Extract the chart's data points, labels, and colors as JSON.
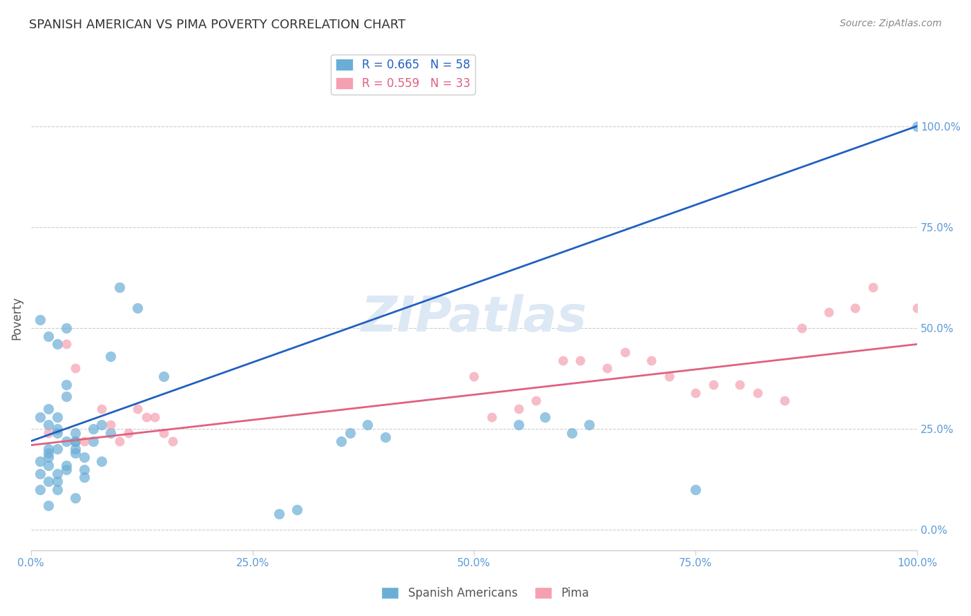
{
  "title": "SPANISH AMERICAN VS PIMA POVERTY CORRELATION CHART",
  "source": "Source: ZipAtlas.com",
  "ylabel": "Poverty",
  "xlabel": "",
  "blue_R": 0.665,
  "blue_N": 58,
  "pink_R": 0.559,
  "pink_N": 33,
  "blue_color": "#6aaed6",
  "pink_color": "#f4a0b0",
  "blue_line_color": "#2060c0",
  "pink_line_color": "#e06080",
  "background_color": "#ffffff",
  "grid_color": "#cccccc",
  "title_color": "#333333",
  "axis_label_color": "#5b9bd5",
  "watermark_color": "#dde8f5",
  "xlim": [
    0,
    1
  ],
  "ylim": [
    -0.05,
    1.1
  ],
  "blue_scatter_x": [
    0.02,
    0.04,
    0.01,
    0.03,
    0.05,
    0.02,
    0.06,
    0.03,
    0.01,
    0.02,
    0.04,
    0.03,
    0.07,
    0.05,
    0.02,
    0.01,
    0.03,
    0.06,
    0.08,
    0.05,
    0.04,
    0.1,
    0.12,
    0.09,
    0.15,
    0.02,
    0.03,
    0.04,
    0.02,
    0.01,
    0.03,
    0.05,
    0.02,
    0.04,
    0.06,
    0.07,
    0.09,
    0.03,
    0.02,
    0.04,
    0.01,
    0.02,
    0.05,
    0.03,
    0.05,
    0.08,
    0.35,
    0.36,
    0.38,
    0.4,
    0.55,
    0.58,
    0.61,
    0.63,
    0.3,
    0.28,
    0.75,
    1.0
  ],
  "blue_scatter_y": [
    0.48,
    0.5,
    0.52,
    0.46,
    0.22,
    0.2,
    0.18,
    0.25,
    0.28,
    0.3,
    0.33,
    0.24,
    0.22,
    0.2,
    0.16,
    0.14,
    0.12,
    0.15,
    0.17,
    0.19,
    0.36,
    0.6,
    0.55,
    0.43,
    0.38,
    0.26,
    0.28,
    0.22,
    0.19,
    0.17,
    0.1,
    0.08,
    0.06,
    0.15,
    0.13,
    0.25,
    0.24,
    0.2,
    0.18,
    0.16,
    0.1,
    0.12,
    0.22,
    0.14,
    0.24,
    0.26,
    0.22,
    0.24,
    0.26,
    0.23,
    0.26,
    0.28,
    0.24,
    0.26,
    0.05,
    0.04,
    0.1,
    1.0
  ],
  "pink_scatter_x": [
    0.02,
    0.04,
    0.05,
    0.08,
    0.06,
    0.09,
    0.1,
    0.12,
    0.14,
    0.15,
    0.16,
    0.13,
    0.11,
    0.5,
    0.52,
    0.55,
    0.57,
    0.6,
    0.62,
    0.65,
    0.67,
    0.7,
    0.72,
    0.75,
    0.77,
    0.8,
    0.82,
    0.85,
    0.87,
    0.9,
    0.93,
    0.95,
    1.0
  ],
  "pink_scatter_y": [
    0.24,
    0.46,
    0.4,
    0.3,
    0.22,
    0.26,
    0.22,
    0.3,
    0.28,
    0.24,
    0.22,
    0.28,
    0.24,
    0.38,
    0.28,
    0.3,
    0.32,
    0.42,
    0.42,
    0.4,
    0.44,
    0.42,
    0.38,
    0.34,
    0.36,
    0.36,
    0.34,
    0.32,
    0.5,
    0.54,
    0.55,
    0.6,
    0.55
  ],
  "blue_line_x": [
    0.0,
    1.0
  ],
  "blue_line_y": [
    0.22,
    1.0
  ],
  "pink_line_x": [
    0.0,
    1.0
  ],
  "pink_line_y": [
    0.21,
    0.46
  ],
  "xticks": [
    0.0,
    0.25,
    0.5,
    0.75,
    1.0
  ],
  "xticklabels": [
    "0.0%",
    "25.0%",
    "50.0%",
    "75.0%",
    "100.0%"
  ],
  "ytick_positions": [
    0.0,
    0.25,
    0.5,
    0.75,
    1.0
  ],
  "yticklabels_right": [
    "0.0%",
    "25.0%",
    "50.0%",
    "75.0%",
    "100.0%"
  ]
}
